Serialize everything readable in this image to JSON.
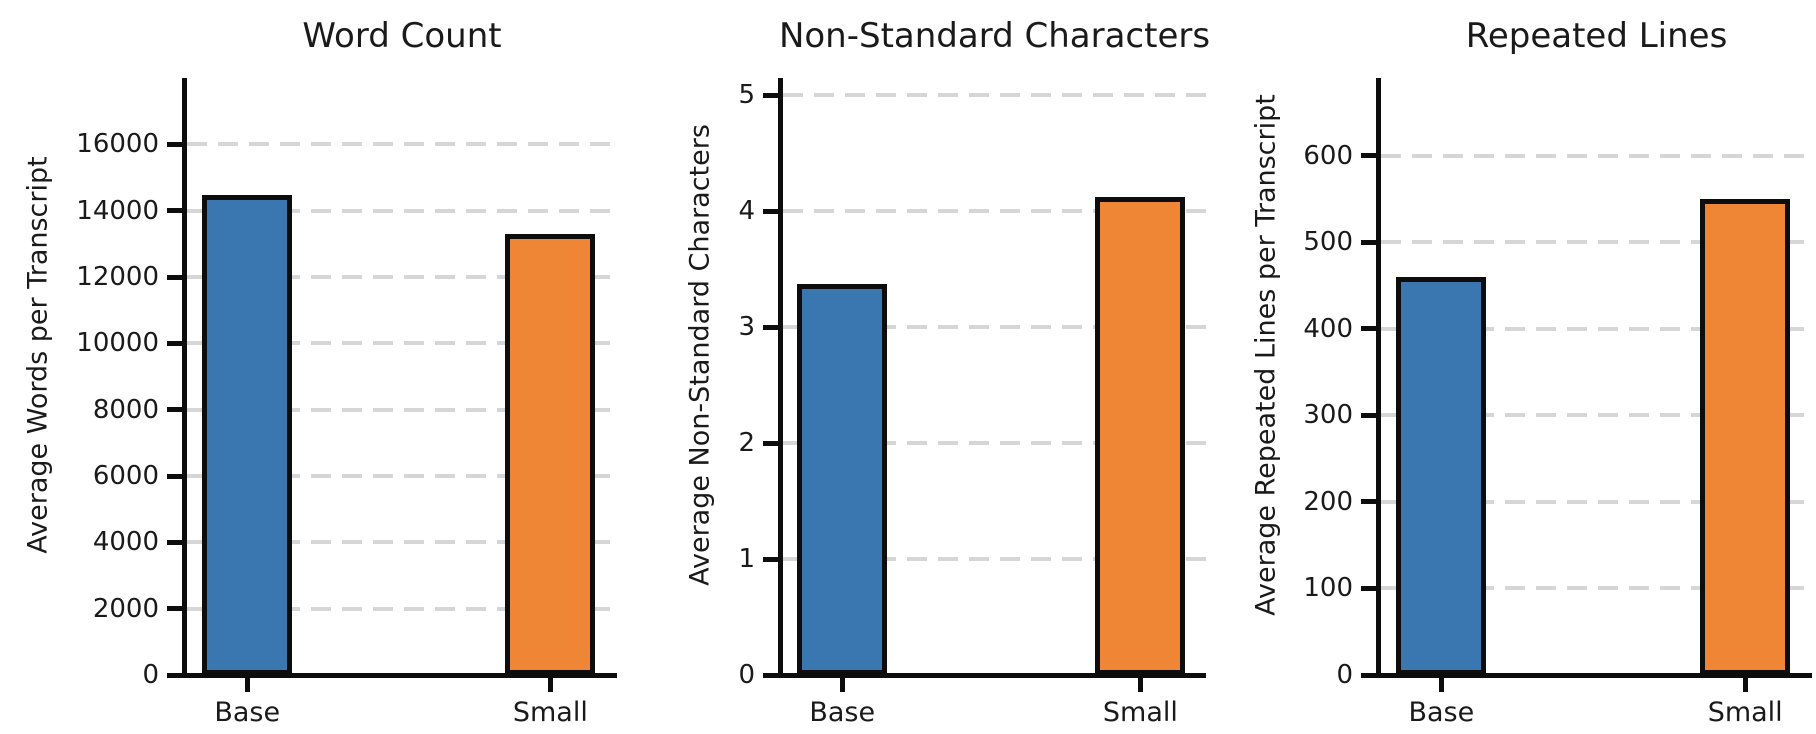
{
  "figure": {
    "background_color": "#ffffff",
    "text_color": "#1a1a1a",
    "grid_color": "#d6d6d6",
    "bar_edge_color": "#0d0d0d",
    "bar_colors": {
      "base": "#3a76af",
      "small": "#ef8636"
    }
  },
  "chart_data": [
    {
      "type": "bar",
      "title": "Word Count",
      "xlabel": "",
      "ylabel": "Average Words per Transcript",
      "categories": [
        "Base",
        "Small"
      ],
      "values": [
        14460,
        13300
      ],
      "bar_colors": [
        "#3a76af",
        "#ef8636"
      ],
      "yticks": [
        0,
        2000,
        4000,
        6000,
        8000,
        10000,
        12000,
        14000,
        16000
      ],
      "ylim": [
        0,
        18000
      ],
      "grid": true,
      "legend_position": "none"
    },
    {
      "type": "bar",
      "title": "Non-Standard Characters",
      "xlabel": "",
      "ylabel": "Average Non-Standard Characters",
      "categories": [
        "Base",
        "Small"
      ],
      "values": [
        3.37,
        4.12
      ],
      "bar_colors": [
        "#3a76af",
        "#ef8636"
      ],
      "yticks": [
        0,
        1,
        2,
        3,
        4,
        5
      ],
      "ylim": [
        0,
        5.15
      ],
      "grid": true,
      "legend_position": "none"
    },
    {
      "type": "bar",
      "title": "Repeated Lines",
      "xlabel": "",
      "ylabel": "Average Repeated Lines per Transcript",
      "categories": [
        "Base",
        "Small"
      ],
      "values": [
        460,
        550
      ],
      "bar_colors": [
        "#3a76af",
        "#ef8636"
      ],
      "yticks": [
        0,
        100,
        200,
        300,
        400,
        500,
        600
      ],
      "ylim": [
        0,
        690
      ],
      "grid": true,
      "legend_position": "none"
    }
  ]
}
